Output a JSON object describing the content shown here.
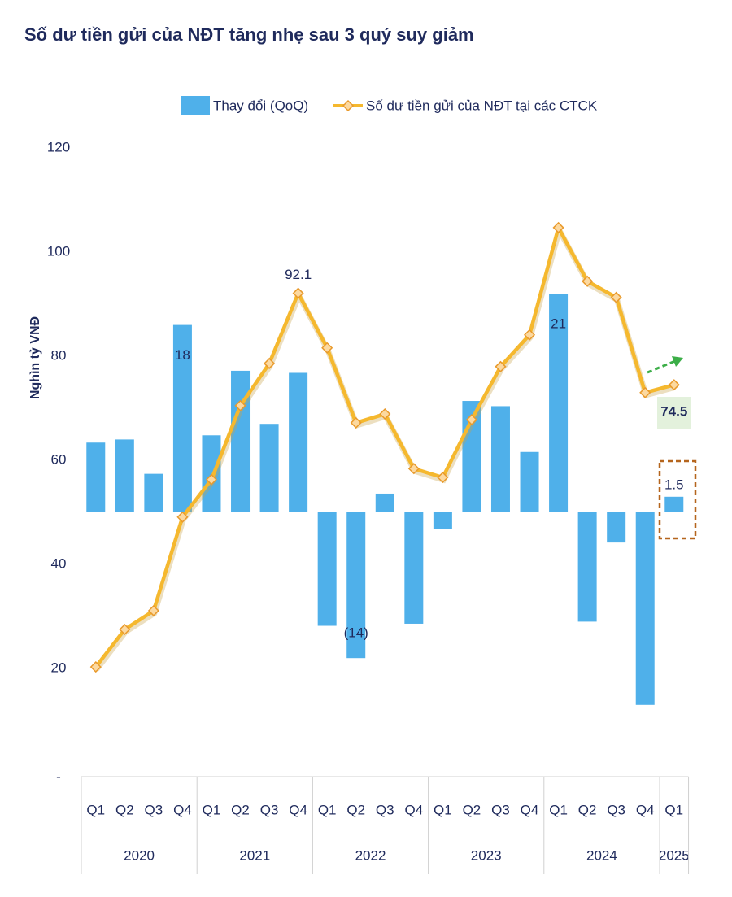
{
  "chart_data": {
    "type": "bar-line",
    "title": "Số dư tiền gửi của NĐT tăng nhẹ sau 3 quý suy giảm",
    "y_axis_label": "Nghìn tỷ VNĐ",
    "categories": [
      "Q1",
      "Q2",
      "Q3",
      "Q4",
      "Q1",
      "Q2",
      "Q3",
      "Q4",
      "Q1",
      "Q2",
      "Q3",
      "Q4",
      "Q1",
      "Q2",
      "Q3",
      "Q4",
      "Q1",
      "Q2",
      "Q3",
      "Q4",
      "Q1"
    ],
    "x_groups": [
      "2020",
      "2021",
      "2022",
      "2023",
      "2024",
      "2025"
    ],
    "ylim": [
      0,
      120
    ],
    "yticks": [
      {
        "value": 0,
        "label": "-"
      },
      20,
      40,
      60,
      80,
      100,
      120
    ],
    "y2lim": [
      -25,
      35
    ],
    "series": [
      {
        "name": "Thay đổi (QoQ)",
        "type": "bar",
        "axis": "y2",
        "color": "#4fb0ea",
        "values": [
          6.7,
          7.0,
          3.7,
          18,
          7.4,
          13.6,
          8.5,
          13.4,
          -10.9,
          -14,
          1.8,
          -10.7,
          -1.6,
          10.7,
          10.2,
          5.8,
          21,
          -10.5,
          -2.9,
          -18.5,
          1.5
        ],
        "value_labels": [
          null,
          null,
          null,
          "18",
          null,
          null,
          null,
          null,
          null,
          "(14)",
          null,
          null,
          null,
          null,
          null,
          null,
          "21",
          null,
          null,
          null,
          "1.5"
        ]
      },
      {
        "name": "Số dư tiền gửi của NĐT tại các CTCK",
        "type": "line",
        "color": "#f5b82e",
        "values": [
          20.3,
          27.5,
          31.1,
          49.1,
          56.3,
          70.5,
          78.6,
          92.1,
          81.6,
          67.2,
          68.9,
          58.4,
          56.7,
          67.8,
          78.0,
          84.1,
          104.7,
          94.4,
          91.3,
          73.0,
          74.5
        ],
        "value_labels": [
          null,
          null,
          null,
          null,
          null,
          null,
          null,
          "92.1",
          null,
          null,
          null,
          null,
          null,
          null,
          null,
          null,
          null,
          null,
          null,
          null,
          "74.5"
        ]
      }
    ]
  }
}
